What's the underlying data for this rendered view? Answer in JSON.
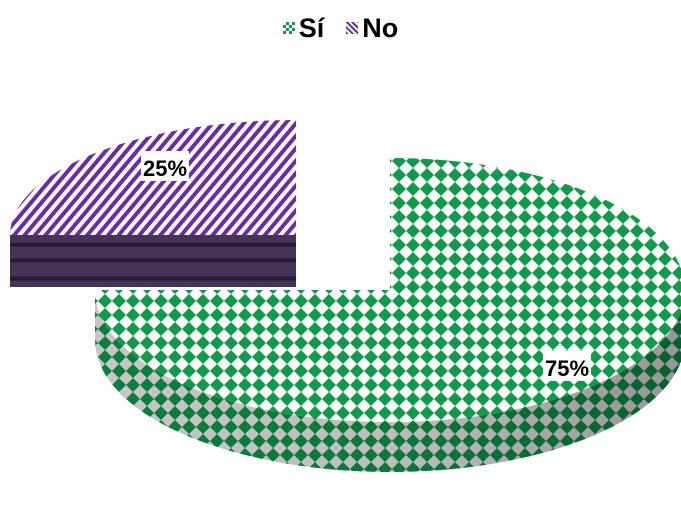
{
  "chart_data": {
    "type": "pie",
    "style": "3d-exploded",
    "categories": [
      "Sí",
      "No"
    ],
    "values": [
      75,
      25
    ],
    "data_labels": [
      "75%",
      "25%"
    ],
    "colors": {
      "Sí": "#0f9b4a",
      "No": "#6d2aa6"
    },
    "patterns": {
      "Sí": "diamond-checker",
      "No": "diagonal-stripes"
    },
    "legend_position": "top"
  }
}
